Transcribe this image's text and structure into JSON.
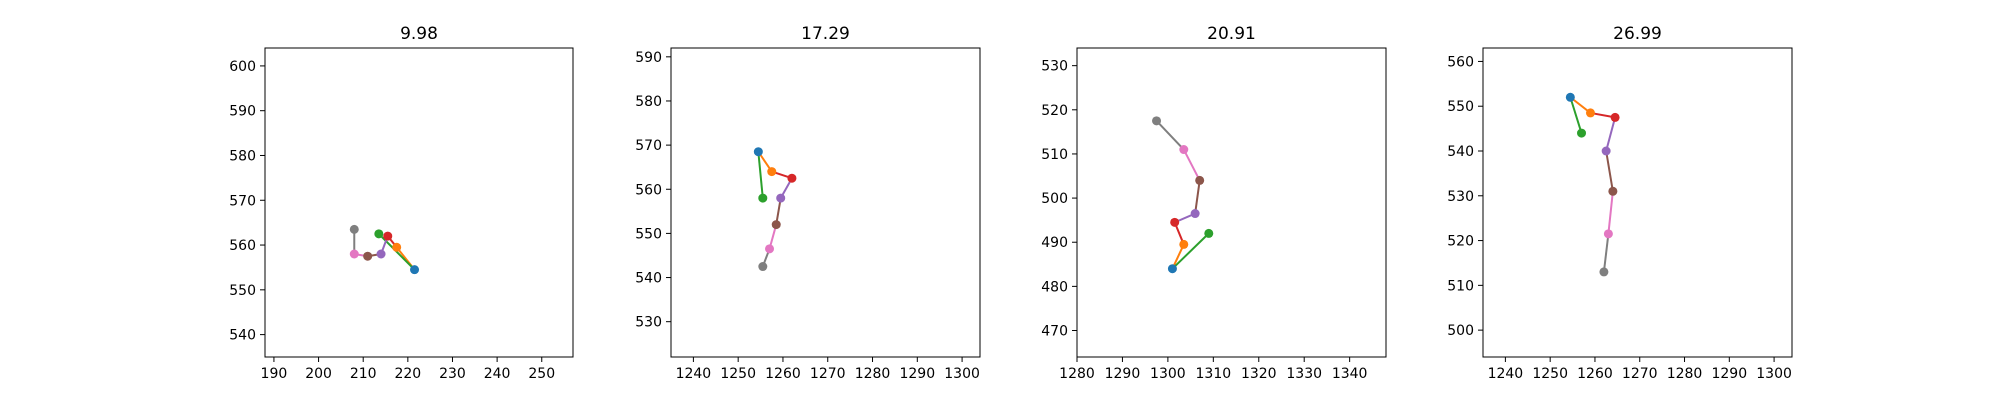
{
  "chart_data": [
    {
      "type": "scatter",
      "title": "9.98",
      "xlim": [
        188,
        257
      ],
      "ylim": [
        535,
        604
      ],
      "xticks": [
        190,
        200,
        210,
        220,
        230,
        240,
        250
      ],
      "yticks": [
        540,
        550,
        560,
        570,
        580,
        590,
        600
      ],
      "points": [
        {
          "x": 221.5,
          "y": 554.5
        },
        {
          "x": 217.5,
          "y": 559.5
        },
        {
          "x": 213.5,
          "y": 562.5
        },
        {
          "x": 215.5,
          "y": 562.0
        },
        {
          "x": 214.0,
          "y": 558.0
        },
        {
          "x": 211.0,
          "y": 557.5
        },
        {
          "x": 208.0,
          "y": 558.0
        },
        {
          "x": 208.0,
          "y": 563.5
        }
      ]
    },
    {
      "type": "scatter",
      "title": "17.29",
      "xlim": [
        1235,
        1304
      ],
      "ylim": [
        522,
        592
      ],
      "xticks": [
        1240,
        1250,
        1260,
        1270,
        1280,
        1290,
        1300
      ],
      "yticks": [
        530,
        540,
        550,
        560,
        570,
        580,
        590
      ],
      "points": [
        {
          "x": 1254.5,
          "y": 568.5
        },
        {
          "x": 1257.5,
          "y": 564.0
        },
        {
          "x": 1255.5,
          "y": 558.0
        },
        {
          "x": 1262.0,
          "y": 562.5
        },
        {
          "x": 1259.5,
          "y": 558.0
        },
        {
          "x": 1258.5,
          "y": 552.0
        },
        {
          "x": 1257.0,
          "y": 546.5
        },
        {
          "x": 1255.5,
          "y": 542.5
        }
      ]
    },
    {
      "type": "scatter",
      "title": "20.91",
      "xlim": [
        1280,
        1348
      ],
      "ylim": [
        464,
        534
      ],
      "xticks": [
        1280,
        1290,
        1300,
        1310,
        1320,
        1330,
        1340
      ],
      "yticks": [
        470,
        480,
        490,
        500,
        510,
        520,
        530
      ],
      "points": [
        {
          "x": 1301.0,
          "y": 484.0
        },
        {
          "x": 1303.5,
          "y": 489.5
        },
        {
          "x": 1309.0,
          "y": 492.0
        },
        {
          "x": 1301.5,
          "y": 494.5
        },
        {
          "x": 1306.0,
          "y": 496.5
        },
        {
          "x": 1307.0,
          "y": 504.0
        },
        {
          "x": 1303.5,
          "y": 511.0
        },
        {
          "x": 1297.5,
          "y": 517.5
        }
      ]
    },
    {
      "type": "scatter",
      "title": "26.99",
      "xlim": [
        1235,
        1304
      ],
      "ylim": [
        494,
        563
      ],
      "xticks": [
        1240,
        1250,
        1260,
        1270,
        1280,
        1290,
        1300
      ],
      "yticks": [
        500,
        510,
        520,
        530,
        540,
        550,
        560
      ],
      "points": [
        {
          "x": 1254.5,
          "y": 552.0
        },
        {
          "x": 1259.0,
          "y": 548.5
        },
        {
          "x": 1257.0,
          "y": 544.0
        },
        {
          "x": 1264.5,
          "y": 547.5
        },
        {
          "x": 1262.5,
          "y": 540.0
        },
        {
          "x": 1264.0,
          "y": 531.0
        },
        {
          "x": 1263.0,
          "y": 521.5
        },
        {
          "x": 1262.0,
          "y": 513.0
        }
      ]
    }
  ],
  "colors": {
    "points": [
      "#1f77b4",
      "#ff7f0e",
      "#2ca02c",
      "#d62728",
      "#9467bd",
      "#8c564b",
      "#e377c2",
      "#7f7f7f"
    ],
    "edges": [
      "#ff7f0e",
      "#2ca02c",
      "#d62728",
      "#9467bd",
      "#8c564b",
      "#e377c2",
      "#7f7f7f"
    ]
  },
  "edges": [
    [
      0,
      1
    ],
    [
      0,
      2
    ],
    [
      1,
      3
    ],
    [
      3,
      4
    ],
    [
      4,
      5
    ],
    [
      5,
      6
    ],
    [
      6,
      7
    ]
  ]
}
